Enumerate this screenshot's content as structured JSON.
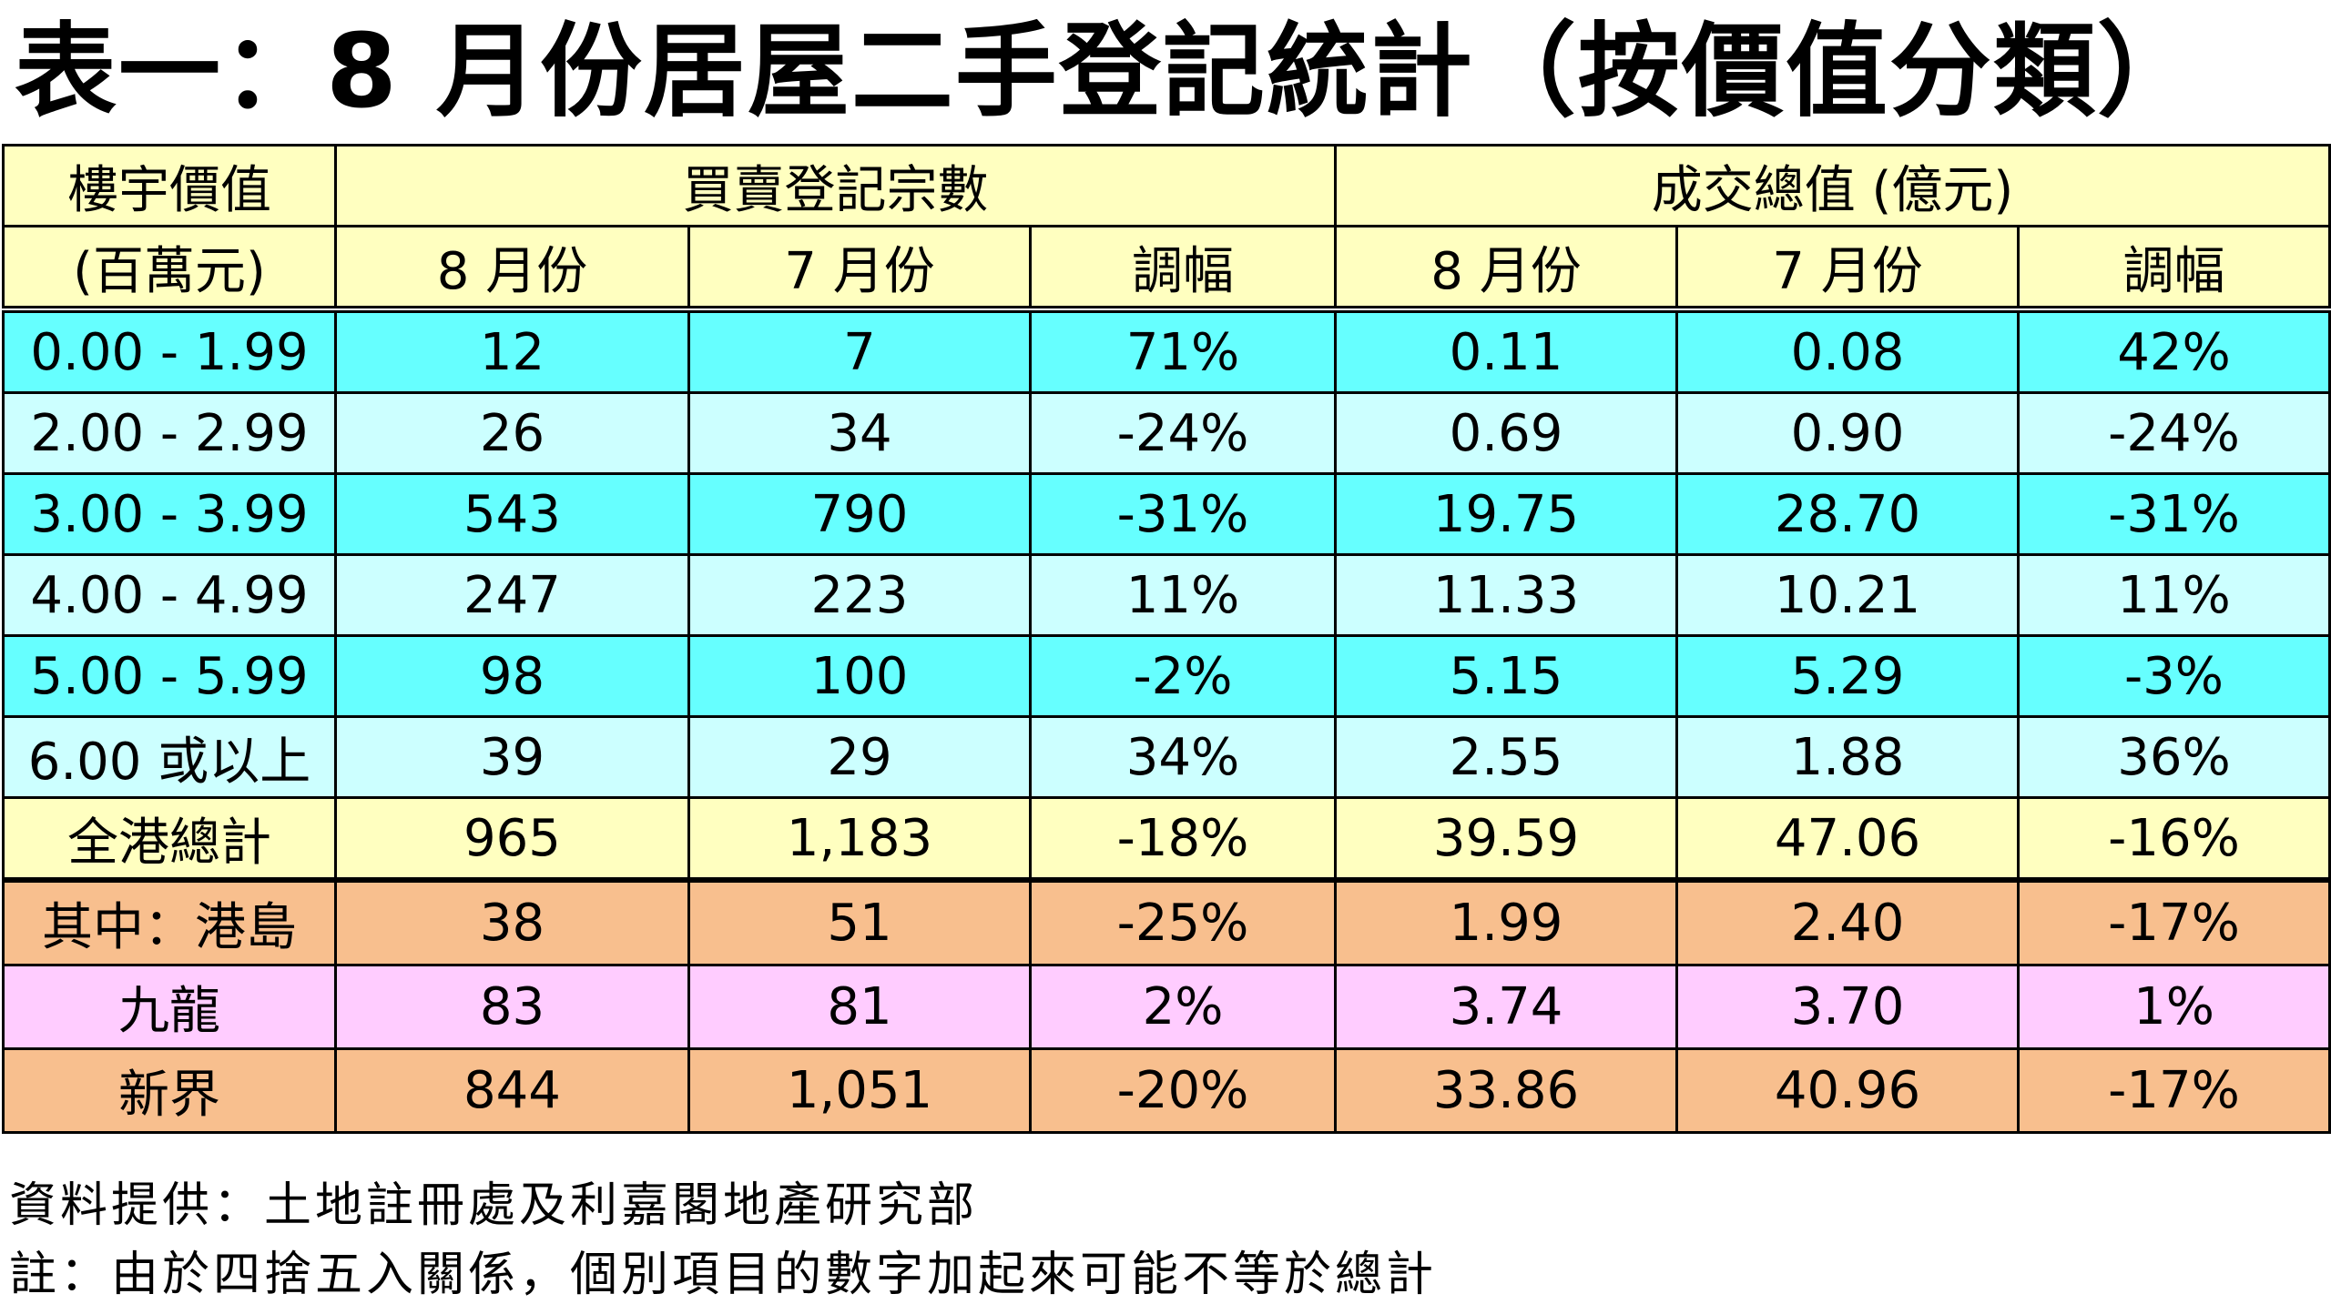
{
  "title": "表一：8 月份居屋二手登記統計（按價值分類）",
  "header": {
    "col_price": "樓宇價值",
    "col_price_unit": "(百萬元)",
    "group_count": "買賣登記宗數",
    "group_value": "成交總值 (億元)",
    "aug": "8 月份",
    "jul": "7 月份",
    "change": "調幅"
  },
  "rows": [
    {
      "label": "0.00 - 1.99",
      "count_aug": "12",
      "count_jul": "7",
      "count_chg": "71%",
      "value_aug": "0.11",
      "value_jul": "0.08",
      "value_chg": "42%"
    },
    {
      "label": "2.00 - 2.99",
      "count_aug": "26",
      "count_jul": "34",
      "count_chg": "-24%",
      "value_aug": "0.69",
      "value_jul": "0.90",
      "value_chg": "-24%"
    },
    {
      "label": "3.00 - 3.99",
      "count_aug": "543",
      "count_jul": "790",
      "count_chg": "-31%",
      "value_aug": "19.75",
      "value_jul": "28.70",
      "value_chg": "-31%"
    },
    {
      "label": "4.00 - 4.99",
      "count_aug": "247",
      "count_jul": "223",
      "count_chg": "11%",
      "value_aug": "11.33",
      "value_jul": "10.21",
      "value_chg": "11%"
    },
    {
      "label": "5.00 - 5.99",
      "count_aug": "98",
      "count_jul": "100",
      "count_chg": "-2%",
      "value_aug": "5.15",
      "value_jul": "5.29",
      "value_chg": "-3%"
    },
    {
      "label": "6.00 或以上",
      "count_aug": "39",
      "count_jul": "29",
      "count_chg": "34%",
      "value_aug": "2.55",
      "value_jul": "1.88",
      "value_chg": "36%"
    }
  ],
  "total": {
    "label": "全港總計",
    "count_aug": "965",
    "count_jul": "1,183",
    "count_chg": "-18%",
    "value_aug": "39.59",
    "value_jul": "47.06",
    "value_chg": "-16%"
  },
  "regions": [
    {
      "label": "其中：港島",
      "count_aug": "38",
      "count_jul": "51",
      "count_chg": "-25%",
      "value_aug": "1.99",
      "value_jul": "2.40",
      "value_chg": "-17%"
    },
    {
      "label": "九龍",
      "count_aug": "83",
      "count_jul": "81",
      "count_chg": "2%",
      "value_aug": "3.74",
      "value_jul": "3.70",
      "value_chg": "1%"
    },
    {
      "label": "新界",
      "count_aug": "844",
      "count_jul": "1,051",
      "count_chg": "-20%",
      "value_aug": "33.86",
      "value_jul": "40.96",
      "value_chg": "-17%"
    }
  ],
  "footer": {
    "source": "資料提供：土地註冊處及利嘉閣地產研究部",
    "note": "註：由於四捨五入關係，個別項目的數字加起來可能不等於總計"
  },
  "colors": {
    "header_bg": "#ffffc0",
    "band_cyan": "#66ffff",
    "band_light_cyan": "#ccffff",
    "region_orange": "#f8bf8e",
    "region_pink": "#ffccff"
  }
}
